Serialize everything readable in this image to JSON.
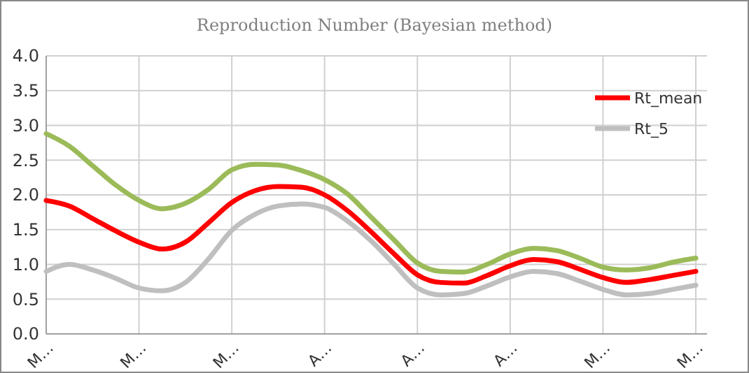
{
  "chart_data": {
    "type": "line",
    "title": "Reproduction Number (Bayesian method)",
    "categories": [
      "M…",
      null,
      null,
      null,
      "M…",
      null,
      null,
      null,
      "M…",
      null,
      null,
      null,
      "A…",
      null,
      null,
      null,
      "A…",
      null,
      null,
      null,
      "A…",
      null,
      null,
      null,
      "M…",
      null,
      null,
      null,
      "M…"
    ],
    "ylim": [
      0,
      4
    ],
    "yticks": [
      {
        "value": 0,
        "label": "0.0"
      },
      {
        "value": 0.5,
        "label": "0.5"
      },
      {
        "value": 1,
        "label": "1.0"
      },
      {
        "value": 1.5,
        "label": "1.5"
      },
      {
        "value": 2,
        "label": "2.0"
      },
      {
        "value": 2.5,
        "label": "2.5"
      },
      {
        "value": 3,
        "label": "3.0"
      },
      {
        "value": 3.5,
        "label": "3.5"
      },
      {
        "value": 4,
        "label": "4.0"
      }
    ],
    "grid": true,
    "legend": "top right",
    "marker": "none",
    "line_style": "solid",
    "series": [
      {
        "color": "#9bbb59",
        "values": [
          2.88,
          2.7,
          2.42,
          2.14,
          1.92,
          1.8,
          1.88,
          2.08,
          2.36,
          2.44,
          2.43,
          2.35,
          2.22,
          2.01,
          1.68,
          1.35,
          1.02,
          0.9,
          0.89,
          1.0,
          1.15,
          1.23,
          1.2,
          1.09,
          0.96,
          0.92,
          0.95,
          1.03,
          1.09
        ]
      },
      {
        "name": "Rt_mean",
        "color": "#ff0000",
        "values": [
          1.92,
          1.84,
          1.66,
          1.48,
          1.32,
          1.22,
          1.32,
          1.6,
          1.89,
          2.06,
          2.12,
          2.11,
          2.0,
          1.77,
          1.47,
          1.15,
          0.85,
          0.74,
          0.73,
          0.84,
          0.98,
          1.07,
          1.04,
          0.93,
          0.81,
          0.74,
          0.78,
          0.84,
          0.9
        ]
      },
      {
        "name": "Rt_5",
        "color": "#bfbfbf",
        "values": [
          0.9,
          1.0,
          0.92,
          0.8,
          0.66,
          0.62,
          0.74,
          1.08,
          1.49,
          1.72,
          1.84,
          1.87,
          1.82,
          1.62,
          1.34,
          1.0,
          0.66,
          0.56,
          0.58,
          0.69,
          0.82,
          0.9,
          0.87,
          0.76,
          0.64,
          0.56,
          0.58,
          0.64,
          0.7
        ]
      }
    ]
  }
}
